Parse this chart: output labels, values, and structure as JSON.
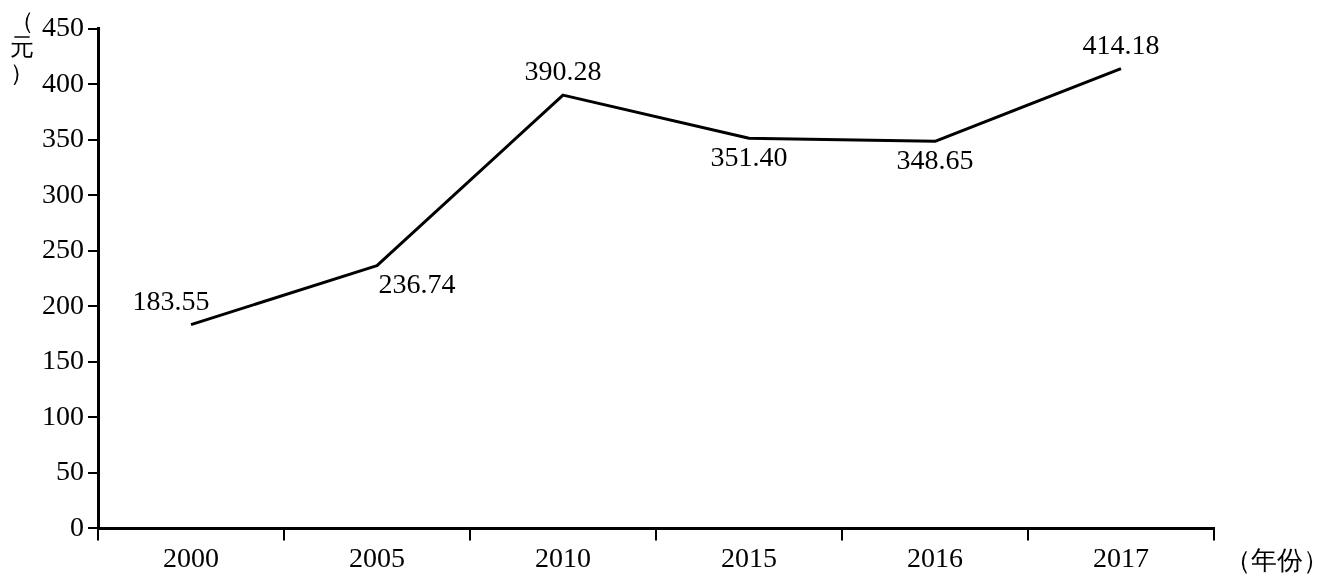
{
  "chart_data": {
    "type": "line",
    "ylabel": "（元）",
    "xlabel": "（年份）",
    "categories": [
      "2000",
      "2005",
      "2010",
      "2015",
      "2016",
      "2017"
    ],
    "series": [
      {
        "color": "#000000",
        "values": [
          183.55,
          236.74,
          390.28,
          351.4,
          348.65,
          414.18
        ],
        "value_labels": [
          "183.55",
          "236.74",
          "390.28",
          "351.40",
          "348.65",
          "414.18"
        ]
      }
    ],
    "ylim": [
      0,
      450
    ],
    "yticks": [
      0,
      50,
      100,
      150,
      200,
      250,
      300,
      350,
      400,
      450
    ],
    "grid": false,
    "legend": false,
    "marker": "none",
    "line_style": "solid"
  }
}
